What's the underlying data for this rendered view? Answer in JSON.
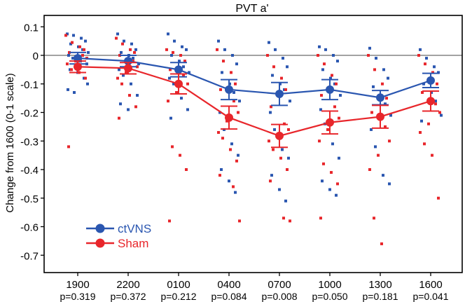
{
  "chart_data": {
    "type": "scatter",
    "title": "PVT  a'",
    "xlabel": "",
    "ylabel": "Change from 1600 (0-1 scale)",
    "ylim": [
      -0.76,
      0.13
    ],
    "yticks": [
      0.1,
      0,
      -0.1,
      -0.2,
      -0.3,
      -0.4,
      -0.5,
      -0.6,
      -0.7
    ],
    "ytick_labels": [
      "0.1",
      "0",
      "-0.1",
      "-0.2",
      "-0.3",
      "-0.4",
      "-0.5",
      "-0.6",
      "-0.7"
    ],
    "categories": [
      "1900",
      "2200",
      "0100",
      "0400",
      "0700",
      "1000",
      "1300",
      "1600"
    ],
    "p_values": [
      "p=0.319",
      "p=0.372",
      "p=0.212",
      "p=0.084",
      "p=0.008",
      "p=0.050",
      "p=0.181",
      "p=0.041"
    ],
    "reference_line": 0,
    "legend_position": "bottom-left",
    "series": [
      {
        "name": "ctVNS",
        "color": "#2a56b0",
        "means": [
          -0.01,
          -0.02,
          -0.05,
          -0.12,
          -0.135,
          -0.12,
          -0.148,
          -0.088
        ],
        "sem": [
          0.02,
          0.02,
          0.025,
          0.035,
          0.04,
          0.035,
          0.025,
          0.025
        ],
        "points": [
          [
            0.075,
            0.07,
            0.06,
            0.05,
            0.04,
            0.03,
            0.02,
            0.01,
            0.0,
            -0.01,
            -0.02,
            -0.03,
            -0.05,
            -0.06,
            -0.08,
            -0.1,
            -0.12,
            -0.13
          ],
          [
            0.075,
            0.05,
            0.04,
            0.02,
            0.01,
            0.0,
            -0.01,
            -0.03,
            -0.05,
            -0.07,
            -0.1,
            -0.14,
            -0.17,
            -0.19
          ],
          [
            0.075,
            0.05,
            0.03,
            0.02,
            0.0,
            -0.02,
            -0.04,
            -0.06,
            -0.08,
            -0.1,
            -0.15,
            -0.19,
            -0.22
          ],
          [
            0.05,
            0.02,
            0.0,
            -0.03,
            -0.06,
            -0.1,
            -0.13,
            -0.16,
            -0.2,
            -0.26,
            -0.31,
            -0.35,
            -0.4,
            -0.44,
            -0.48
          ],
          [
            0.045,
            0.02,
            -0.01,
            -0.04,
            -0.07,
            -0.1,
            -0.12,
            -0.16,
            -0.2,
            -0.26,
            -0.33,
            -0.36,
            -0.42,
            -0.47,
            -0.51
          ],
          [
            0.03,
            0.02,
            0.0,
            -0.02,
            -0.05,
            -0.08,
            -0.1,
            -0.14,
            -0.19,
            -0.24,
            -0.31,
            -0.36,
            -0.44,
            -0.47,
            -0.49
          ],
          [
            0.025,
            -0.01,
            -0.05,
            -0.08,
            -0.11,
            -0.14,
            -0.17,
            -0.21,
            -0.26,
            -0.32,
            -0.42,
            -0.45
          ],
          [
            0.02,
            -0.01,
            -0.04,
            -0.06,
            -0.1,
            -0.13,
            -0.16,
            -0.21,
            -0.23
          ]
        ]
      },
      {
        "name": "Sham",
        "color": "#e8262b",
        "means": [
          -0.04,
          -0.045,
          -0.1,
          -0.218,
          -0.282,
          -0.235,
          -0.215,
          -0.16
        ],
        "sem": [
          0.02,
          0.02,
          0.035,
          0.04,
          0.04,
          0.04,
          0.04,
          0.035
        ],
        "points": [
          [
            0.07,
            0.045,
            0.03,
            0.02,
            0.01,
            0.0,
            -0.01,
            -0.02,
            -0.03,
            -0.05,
            -0.06,
            -0.08,
            -0.32
          ],
          [
            0.06,
            0.04,
            0.02,
            0.01,
            0.0,
            -0.02,
            -0.04,
            -0.06,
            -0.08,
            -0.1,
            -0.14,
            -0.18,
            -0.22
          ],
          [
            0.02,
            0.01,
            0.0,
            -0.02,
            -0.05,
            -0.07,
            -0.1,
            -0.13,
            -0.16,
            -0.32,
            -0.35,
            -0.4,
            -0.58
          ],
          [
            0.02,
            -0.02,
            -0.06,
            -0.1,
            -0.12,
            -0.16,
            -0.2,
            -0.23,
            -0.27,
            -0.29,
            -0.33,
            -0.37,
            -0.42,
            -0.46,
            -0.58
          ],
          [
            0.0,
            -0.04,
            -0.08,
            -0.12,
            -0.18,
            -0.24,
            -0.26,
            -0.28,
            -0.3,
            -0.33,
            -0.36,
            -0.4,
            -0.44,
            -0.57,
            -0.58
          ],
          [
            0.0,
            -0.03,
            -0.07,
            -0.1,
            -0.14,
            -0.18,
            -0.22,
            -0.26,
            -0.3,
            -0.38,
            -0.41,
            -0.45,
            -0.57
          ],
          [
            0.0,
            -0.05,
            -0.1,
            -0.15,
            -0.2,
            -0.25,
            -0.3,
            -0.35,
            -0.4,
            -0.57,
            -0.66
          ],
          [
            0.0,
            -0.03,
            -0.06,
            -0.1,
            -0.13,
            -0.17,
            -0.2,
            -0.24,
            -0.27,
            -0.31,
            -0.35,
            -0.5
          ]
        ]
      }
    ]
  }
}
